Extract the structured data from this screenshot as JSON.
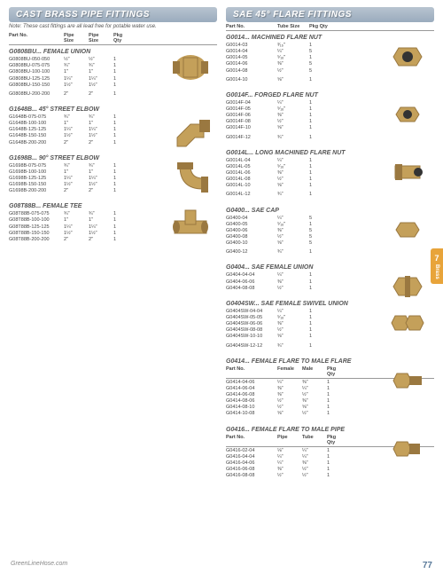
{
  "left": {
    "header": "CAST BRASS PIPE FITTINGS",
    "note": "Note: These cast fittings are all lead free for potable water use.",
    "cols": [
      "Part No.",
      "Pipe\nSize",
      "Pipe\nSize",
      "Pkg Qty"
    ],
    "sections": [
      {
        "title": "G0808BU... FEMALE UNION",
        "img": "union",
        "rows": [
          [
            "G0808BU-050-050",
            "½\"",
            "½\"",
            "1"
          ],
          [
            "G0808BU-075-075",
            "¾\"",
            "¾\"",
            "1"
          ],
          [
            "G0808BU-100-100",
            "1\"",
            "1\"",
            "1"
          ],
          [
            "G0808BU-125-125",
            "1¼\"",
            "1¼\"",
            "1"
          ],
          [
            "G0808BU-150-150",
            "1½\"",
            "1½\"",
            "1"
          ],
          [
            "",
            "",
            "",
            ""
          ],
          [
            "G0808BU-200-200",
            "2\"",
            "2\"",
            "1"
          ]
        ]
      },
      {
        "title": "G1648B... 45° STREET ELBOW",
        "img": "elbow45",
        "rows": [
          [
            "G1648B-075-075",
            "¾\"",
            "¾\"",
            "1"
          ],
          [
            "G1648B-100-100",
            "1\"",
            "1\"",
            "1"
          ],
          [
            "G1648B-125-125",
            "1¼\"",
            "1¼\"",
            "1"
          ],
          [
            "G1648B-150-150",
            "1½\"",
            "1½\"",
            "1"
          ],
          [
            "G1648B-200-200",
            "2\"",
            "2\"",
            "1"
          ]
        ]
      },
      {
        "title": "G1698B... 90° STREET ELBOW",
        "img": "elbow90",
        "rows": [
          [
            "G1698B-075-075",
            "¾\"",
            "¾\"",
            "1"
          ],
          [
            "G1698B-100-100",
            "1\"",
            "1\"",
            "1"
          ],
          [
            "G1698B-125-125",
            "1¼\"",
            "1¼\"",
            "1"
          ],
          [
            "G1698B-150-150",
            "1½\"",
            "1½\"",
            "1"
          ],
          [
            "G1698B-200-200",
            "2\"",
            "2\"",
            "1"
          ]
        ]
      },
      {
        "title": "G08T88B... FEMALE TEE",
        "img": "tee",
        "rows": [
          [
            "G08T88B-075-075",
            "¾\"",
            "¾\"",
            "1"
          ],
          [
            "G08T88B-100-100",
            "1\"",
            "1\"",
            "1"
          ],
          [
            "G08T88B-125-125",
            "1¼\"",
            "1¼\"",
            "1"
          ],
          [
            "G08T88B-150-150",
            "1½\"",
            "1½\"",
            "1"
          ],
          [
            "G08T88B-200-200",
            "2\"",
            "2\"",
            "1"
          ]
        ]
      }
    ]
  },
  "right": {
    "header": "SAE 45° FLARE FITTINGS",
    "cols": [
      "Part No.",
      "Tube Size",
      "Pkg Qty"
    ],
    "sections": [
      {
        "title": "G0014... MACHINED FLARE NUT",
        "img": "nut",
        "rows": [
          [
            "G0014-03",
            "³⁄₁₆\"",
            "1"
          ],
          [
            "G0014-04",
            "¼\"",
            "5"
          ],
          [
            "G0014-05",
            "⁵⁄₁₆\"",
            "1"
          ],
          [
            "G0014-06",
            "⅜\"",
            "5"
          ],
          [
            "G0014-08",
            "½\"",
            "5"
          ],
          [
            "",
            "",
            ""
          ],
          [
            "G0014-10",
            "⅝\"",
            "1"
          ]
        ]
      },
      {
        "title": "G0014F... FORGED FLARE NUT",
        "img": "nut2",
        "rows": [
          [
            "G0014F-04",
            "¼\"",
            "1"
          ],
          [
            "G0014F-05",
            "⁵⁄₁₆\"",
            "1"
          ],
          [
            "G0014F-06",
            "⅜\"",
            "1"
          ],
          [
            "G0014F-08",
            "½\"",
            "1"
          ],
          [
            "G0014F-10",
            "⅝\"",
            "1"
          ],
          [
            "",
            "",
            ""
          ],
          [
            "G0014F-12",
            "¾\"",
            "1"
          ]
        ]
      },
      {
        "title": "G0014L... LONG MACHINED FLARE NUT",
        "img": "nutlong",
        "rows": [
          [
            "G0014L-04",
            "¼\"",
            "1"
          ],
          [
            "G0014L-05",
            "⁵⁄₁₆\"",
            "1"
          ],
          [
            "G0014L-06",
            "⅜\"",
            "1"
          ],
          [
            "G0014L-08",
            "½\"",
            "1"
          ],
          [
            "G0014L-10",
            "⅝\"",
            "1"
          ],
          [
            "",
            "",
            ""
          ],
          [
            "G0014L-12",
            "¾\"",
            "1"
          ]
        ]
      },
      {
        "title": "G0400... SAE CAP",
        "img": "cap",
        "rows": [
          [
            "G0400-04",
            "¼\"",
            "5"
          ],
          [
            "G0400-05",
            "⁵⁄₁₆\"",
            "1"
          ],
          [
            "G0400-06",
            "⅜\"",
            "5"
          ],
          [
            "G0400-08",
            "½\"",
            "5"
          ],
          [
            "G0400-10",
            "⅝\"",
            "5"
          ],
          [
            "",
            "",
            ""
          ],
          [
            "G0400-12",
            "¾\"",
            "1"
          ]
        ]
      },
      {
        "title": "G0404... SAE FEMALE UNION",
        "img": "funion",
        "rows": [
          [
            "G0404-04-04",
            "¼\"",
            "1"
          ],
          [
            "G0404-06-06",
            "⅜\"",
            "1"
          ],
          [
            "G0404-08-08",
            "½\"",
            "1"
          ]
        ]
      },
      {
        "title": "G0404SW... SAE FEMALE SWIVEL UNION",
        "img": "swivel",
        "rows": [
          [
            "G0404SW-04-04",
            "¼\"",
            "1"
          ],
          [
            "G0404SW-05-05",
            "⁵⁄₁₆\"",
            "1"
          ],
          [
            "G0404SW-06-06",
            "⅜\"",
            "1"
          ],
          [
            "G0404SW-08-08",
            "½\"",
            "1"
          ],
          [
            "G0404SW-10-10",
            "⅝\"",
            "1"
          ],
          [
            "",
            "",
            ""
          ],
          [
            "G0404SW-12-12",
            "¾\"",
            "1"
          ]
        ]
      },
      {
        "title": "G0414... FEMALE FLARE TO MALE FLARE",
        "img": "fm",
        "cols3": [
          "Part No.",
          "Female",
          "Male",
          "Pkg Qty"
        ],
        "rows": [
          [
            "G0414-04-06",
            "¼\"",
            "⅜\"",
            "1"
          ],
          [
            "G0414-06-04",
            "⅜\"",
            "¼\"",
            "1"
          ],
          [
            "G0414-06-08",
            "⅜\"",
            "½\"",
            "1"
          ],
          [
            "G0414-08-06",
            "½\"",
            "⅜\"",
            "1"
          ],
          [
            "G0414-08-10",
            "½\"",
            "⅝\"",
            "1"
          ],
          [
            "G0414-10-08",
            "⅝\"",
            "½\"",
            "1"
          ]
        ]
      },
      {
        "title": "G0416... FEMALE FLARE TO MALE PIPE",
        "img": "fp",
        "cols3": [
          "Part No.",
          "Pipe",
          "Tube",
          "Pkg Qty"
        ],
        "rows": [
          [
            "G0416-02-04",
            "⅛\"",
            "¼\"",
            "1"
          ],
          [
            "G0416-04-04",
            "¼\"",
            "¼\"",
            "1"
          ],
          [
            "G0416-04-06",
            "¼\"",
            "⅜\"",
            "1"
          ],
          [
            "G0416-06-08",
            "⅜\"",
            "½\"",
            "1"
          ],
          [
            "G0416-08-08",
            "½\"",
            "½\"",
            "1"
          ]
        ]
      }
    ]
  },
  "tab": {
    "num": "7",
    "label": "Brass"
  },
  "footer": {
    "site": "GreenLineHose.com",
    "page": "77"
  },
  "colors": {
    "brass": "#c4a05a",
    "brass2": "#9a7840",
    "steel": "#d4c890"
  }
}
